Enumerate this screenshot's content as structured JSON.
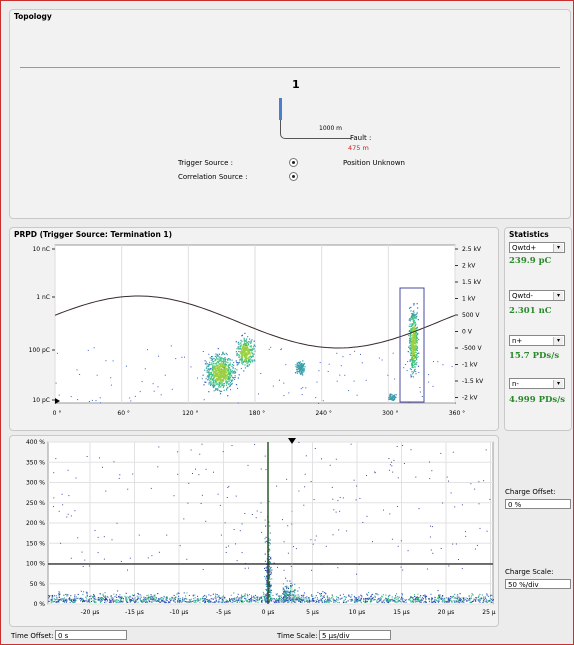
{
  "topology": {
    "title": "Topology",
    "node_label": "1",
    "length_label": "1000 m",
    "fault_label": "Fault :",
    "fault_value": "475 m",
    "position_label": "Position Unknown",
    "trigger_source_label": "Trigger Source :",
    "correlation_source_label": "Correlation Source :"
  },
  "prpd": {
    "title": "PRPD (Trigger Source: Termination 1)",
    "left_ticks": [
      "10 nC",
      "1 nC",
      "100 pC",
      "10 pC"
    ],
    "right_ticks": [
      "2.5 kV",
      "2 kV",
      "1.5 kV",
      "1 kV",
      "500 V",
      "0 V",
      "-500 V",
      "-1 kV",
      "-1.5 kV",
      "-2 kV"
    ],
    "x_ticks": [
      "0 °",
      "60 °",
      "120 °",
      "180 °",
      "240 °",
      "300 °",
      "360 °"
    ]
  },
  "statistics": {
    "title": "Statistics",
    "items": [
      {
        "select": "Qwtd+",
        "value": "239.9 pC"
      },
      {
        "select": "Qwtd-",
        "value": "2.301 nC"
      },
      {
        "select": "n+",
        "value": "15.7 PDs/s"
      },
      {
        "select": "n-",
        "value": "4.999 PDs/s"
      }
    ]
  },
  "bottom_chart": {
    "y_ticks": [
      "400 %",
      "350 %",
      "300 %",
      "250 %",
      "200 %",
      "150 %",
      "100 %",
      "50 %",
      "0 %"
    ],
    "x_ticks": [
      "-20 µs",
      "-15 µs",
      "-10 µs",
      "-5 µs",
      "0 µs",
      "5 µs",
      "10 µs",
      "15 µs",
      "20 µs",
      "25 µs"
    ]
  },
  "controls": {
    "charge_offset_label": "Charge Offset:",
    "charge_offset_value": "0 %",
    "charge_scale_label": "Charge Scale:",
    "charge_scale_value": "50 %/div",
    "time_offset_label": "Time Offset:",
    "time_offset_value": "0 s",
    "time_scale_label": "Time Scale:",
    "time_scale_value": "5 µs/div"
  },
  "colors": {
    "fault": "#cc2020",
    "stat_green": "#2a8a2a",
    "cable_blue": "#4a7fd0",
    "sine": "#3a2a2a",
    "window_box": "#4a4aa0"
  }
}
